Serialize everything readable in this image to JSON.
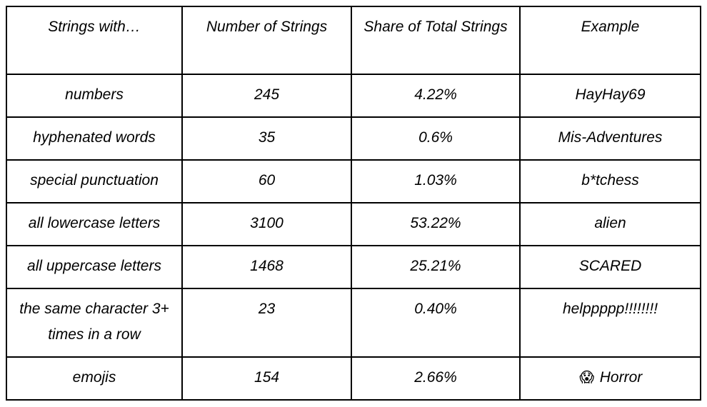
{
  "table": {
    "headers": [
      "Strings with…",
      "Number of Strings",
      "Share of Total Strings",
      "Example"
    ],
    "rows": [
      {
        "type": "numbers",
        "count": "245",
        "share": "4.22%",
        "example": "HayHay69"
      },
      {
        "type": "hyphenated words",
        "count": "35",
        "share": "0.6%",
        "example": "Mis-Adventures"
      },
      {
        "type": "special punctuation",
        "count": "60",
        "share": "1.03%",
        "example": "b*tchess"
      },
      {
        "type": "all lowercase letters",
        "count": "3100",
        "share": "53.22%",
        "example": "alien"
      },
      {
        "type": "all uppercase letters",
        "count": "1468",
        "share": "25.21%",
        "example": "SCARED"
      },
      {
        "type": "the same character 3+ times in a row",
        "count": "23",
        "share": "0.40%",
        "example": "helppppp!!!!!!!!"
      },
      {
        "type": "emojis",
        "count": "154",
        "share": "2.66%",
        "example": "Horror",
        "example_emoji": "😱",
        "example_icon": "screaming-face-emoji-icon"
      }
    ]
  }
}
